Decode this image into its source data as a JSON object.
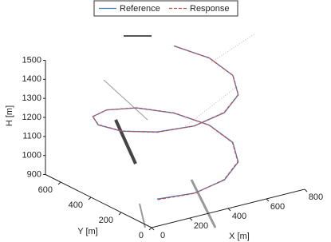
{
  "chart_data": {
    "type": "line3d",
    "xlabel": "X [m]",
    "ylabel": "Y [m]",
    "zlabel": "H [m]",
    "xlim": [
      0,
      800
    ],
    "ylim": [
      0,
      700
    ],
    "zlim": [
      900,
      1500
    ],
    "xticks": [
      0,
      200,
      400,
      600,
      800
    ],
    "yticks": [
      0,
      200,
      400,
      600
    ],
    "zticks": [
      900,
      1000,
      1100,
      1200,
      1300,
      1400,
      1500
    ],
    "legend": "top",
    "series": [
      {
        "name": "Reference",
        "color": "#3b7dc0",
        "style": "solid",
        "x": [
          138,
          272,
          428,
          562,
          640,
          640,
          562,
          428,
          272,
          138,
          60,
          60,
          138,
          272,
          428,
          562,
          640,
          640,
          562
        ],
        "y": [
          138,
          60,
          60,
          138,
          272,
          428,
          562,
          640,
          640,
          562,
          428,
          272,
          138,
          60,
          60,
          138,
          272,
          428,
          562
        ],
        "z": [
          960,
          989,
          1019,
          1048,
          1078,
          1107,
          1136,
          1166,
          1195,
          1225,
          1254,
          1283,
          1313,
          1342,
          1372,
          1401,
          1430,
          1460,
          1489
        ]
      },
      {
        "name": "Response",
        "color": "#c0504d",
        "style": "dashed",
        "x": [
          140,
          273,
          428,
          561,
          639,
          640,
          563,
          429,
          272,
          139,
          61,
          60,
          137,
          271,
          428,
          563,
          641,
          640,
          561
        ],
        "y": [
          136,
          59,
          61,
          139,
          273,
          428,
          561,
          639,
          641,
          563,
          428,
          271,
          137,
          61,
          61,
          139,
          272,
          427,
          561
        ],
        "z": [
          958,
          988,
          1020,
          1049,
          1077,
          1106,
          1137,
          1167,
          1194,
          1224,
          1255,
          1284,
          1312,
          1341,
          1373,
          1402,
          1429,
          1459,
          1490
        ]
      }
    ]
  }
}
